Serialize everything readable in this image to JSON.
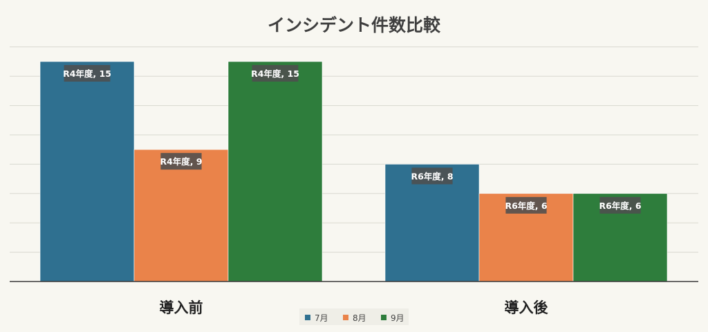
{
  "chart_data": {
    "type": "bar",
    "title": "インシデント件数比較",
    "categories": [
      "導入前",
      "導入後"
    ],
    "series": [
      {
        "name": "7月",
        "color": "#2f7090",
        "values": [
          15,
          8
        ],
        "labels": [
          "R4年度, 15",
          "R6年度, 8"
        ]
      },
      {
        "name": "8月",
        "color": "#ea834a",
        "values": [
          9,
          6
        ],
        "labels": [
          "R4年度, 9",
          "R6年度, 6"
        ]
      },
      {
        "name": "9月",
        "color": "#2e7d3c",
        "values": [
          15,
          6
        ],
        "labels": [
          "R4年度, 15",
          "R6年度, 6"
        ]
      }
    ],
    "ylim": [
      0,
      16
    ],
    "grid": true,
    "legend": "bottom",
    "xlabel": "",
    "ylabel": ""
  }
}
